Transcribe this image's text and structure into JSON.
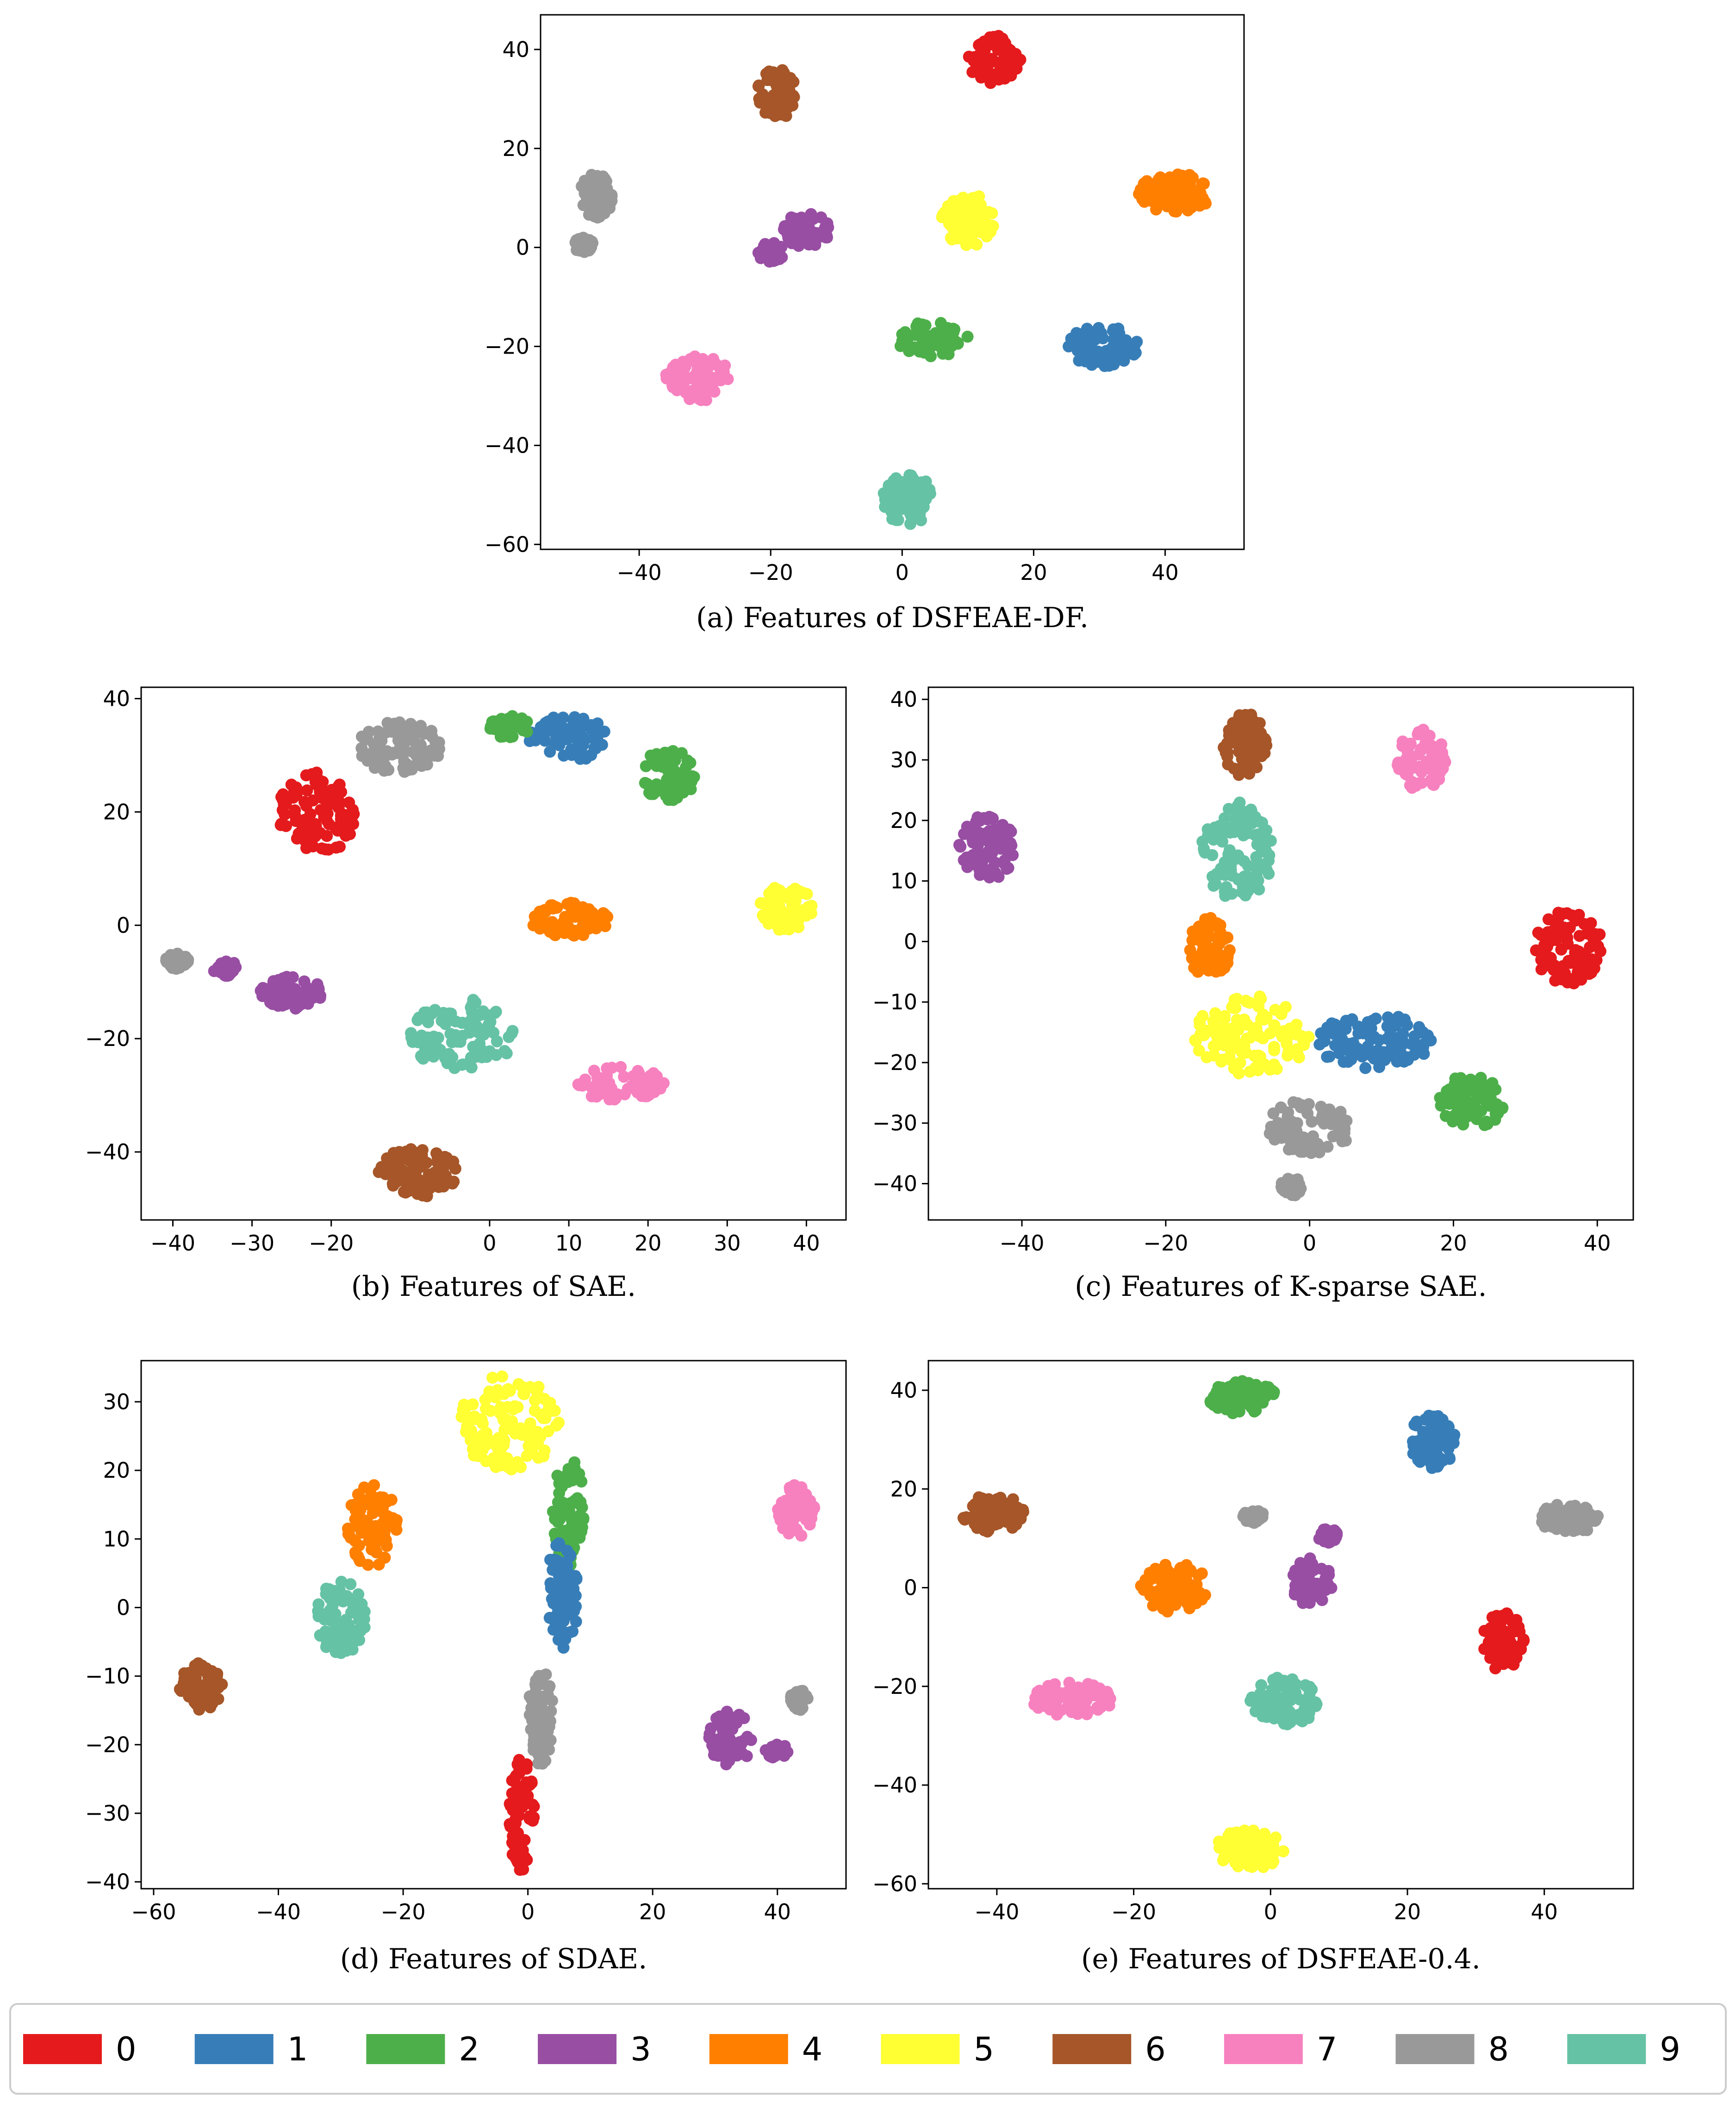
{
  "legend": {
    "entries": [
      {
        "label": "0",
        "color": "#e41a1c"
      },
      {
        "label": "1",
        "color": "#377eb8"
      },
      {
        "label": "2",
        "color": "#4daf4a"
      },
      {
        "label": "3",
        "color": "#984ea3"
      },
      {
        "label": "4",
        "color": "#ff7f00"
      },
      {
        "label": "5",
        "color": "#ffff33"
      },
      {
        "label": "6",
        "color": "#a65628"
      },
      {
        "label": "7",
        "color": "#f781bf"
      },
      {
        "label": "8",
        "color": "#999999"
      },
      {
        "label": "9",
        "color": "#66c2a5"
      }
    ],
    "placement": "bottom"
  },
  "chart_data": [
    {
      "type": "scatter",
      "caption": "(a)  Features of DSFEAE-DF.",
      "xlim": [
        -55,
        52
      ],
      "ylim": [
        -61,
        47
      ],
      "xticks": [
        -40,
        -20,
        0,
        20,
        40
      ],
      "yticks": [
        -60,
        -40,
        -20,
        0,
        20,
        40
      ],
      "grid": false,
      "clusters": [
        {
          "class": "0",
          "x": [
            10,
            18
          ],
          "y": [
            33,
            43
          ]
        },
        {
          "class": "6",
          "x": [
            -22,
            -16
          ],
          "y": [
            26,
            36
          ]
        },
        {
          "class": "8",
          "x": [
            -49,
            -44
          ],
          "y": [
            6,
            15
          ]
        },
        {
          "class": "8",
          "x": [
            -50,
            -47
          ],
          "y": [
            -1,
            2
          ]
        },
        {
          "class": "4",
          "x": [
            36,
            47
          ],
          "y": [
            7,
            15
          ]
        },
        {
          "class": "5",
          "x": [
            6,
            14
          ],
          "y": [
            0,
            11
          ]
        },
        {
          "class": "3",
          "x": [
            -18,
            -11
          ],
          "y": [
            0,
            7
          ]
        },
        {
          "class": "3",
          "x": [
            -22,
            -18
          ],
          "y": [
            -3,
            1
          ]
        },
        {
          "class": "2",
          "x": [
            -1,
            10
          ],
          "y": [
            -22,
            -15
          ]
        },
        {
          "class": "1",
          "x": [
            25,
            36
          ],
          "y": [
            -24,
            -16
          ]
        },
        {
          "class": "7",
          "x": [
            -36,
            -26
          ],
          "y": [
            -31,
            -22
          ]
        },
        {
          "class": "9",
          "x": [
            -3,
            5
          ],
          "y": [
            -56,
            -46
          ]
        }
      ]
    },
    {
      "type": "scatter",
      "caption": "(b)  Features of SAE.",
      "xlim": [
        -44,
        45
      ],
      "ylim": [
        -52,
        42
      ],
      "xticks": [
        -40,
        -30,
        -20,
        10,
        0,
        10,
        20,
        30,
        40
      ],
      "yticks": [
        -40,
        -20,
        0,
        20,
        40
      ],
      "grid": false,
      "clusters": [
        {
          "class": "8",
          "x": [
            -17,
            -6
          ],
          "y": [
            27,
            36
          ]
        },
        {
          "class": "0",
          "x": [
            -27,
            -17
          ],
          "y": [
            12,
            27
          ]
        },
        {
          "class": "1",
          "x": [
            5,
            15
          ],
          "y": [
            29,
            37
          ]
        },
        {
          "class": "2",
          "x": [
            0,
            5
          ],
          "y": [
            33,
            37
          ]
        },
        {
          "class": "2",
          "x": [
            19,
            26
          ],
          "y": [
            22,
            31
          ]
        },
        {
          "class": "5",
          "x": [
            34,
            41
          ],
          "y": [
            -1,
            7
          ]
        },
        {
          "class": "4",
          "x": [
            5,
            15
          ],
          "y": [
            -2,
            4
          ]
        },
        {
          "class": "8",
          "x": [
            -41,
            -38
          ],
          "y": [
            -8,
            -5
          ]
        },
        {
          "class": "3",
          "x": [
            -35,
            -32
          ],
          "y": [
            -9,
            -6
          ]
        },
        {
          "class": "3",
          "x": [
            -29,
            -21
          ],
          "y": [
            -15,
            -9
          ]
        },
        {
          "class": "9",
          "x": [
            -10,
            3
          ],
          "y": [
            -26,
            -13
          ]
        },
        {
          "class": "7",
          "x": [
            11,
            22
          ],
          "y": [
            -31,
            -25
          ]
        },
        {
          "class": "6",
          "x": [
            -14,
            -4
          ],
          "y": [
            -48,
            -39
          ]
        }
      ]
    },
    {
      "type": "scatter",
      "caption": "(c)  Features of K-sparse SAE.",
      "xlim": [
        -53,
        45
      ],
      "ylim": [
        -46,
        42
      ],
      "xticks": [
        -40,
        -20,
        0,
        20,
        40
      ],
      "yticks": [
        -40,
        -30,
        -20,
        -10,
        0,
        10,
        20,
        30,
        40
      ],
      "grid": false,
      "clusters": [
        {
          "class": "6",
          "x": [
            -12,
            -6
          ],
          "y": [
            27,
            38
          ]
        },
        {
          "class": "7",
          "x": [
            12,
            19
          ],
          "y": [
            25,
            35
          ]
        },
        {
          "class": "3",
          "x": [
            -49,
            -41
          ],
          "y": [
            10,
            21
          ]
        },
        {
          "class": "9",
          "x": [
            -15,
            -5
          ],
          "y": [
            7,
            23
          ]
        },
        {
          "class": "4",
          "x": [
            -17,
            -11
          ],
          "y": [
            -6,
            4
          ]
        },
        {
          "class": "5",
          "x": [
            -16,
            0
          ],
          "y": [
            -22,
            -9
          ]
        },
        {
          "class": "1",
          "x": [
            1,
            17
          ],
          "y": [
            -21,
            -12
          ]
        },
        {
          "class": "0",
          "x": [
            31,
            41
          ],
          "y": [
            -7,
            5
          ]
        },
        {
          "class": "2",
          "x": [
            18,
            27
          ],
          "y": [
            -31,
            -22
          ]
        },
        {
          "class": "8",
          "x": [
            -6,
            6
          ],
          "y": [
            -35,
            -26
          ]
        },
        {
          "class": "8",
          "x": [
            -4,
            -1
          ],
          "y": [
            -42,
            -39
          ]
        }
      ]
    },
    {
      "type": "scatter",
      "caption": "(d)  Features of SDAE.",
      "xlim": [
        -62,
        51
      ],
      "ylim": [
        -41,
        36
      ],
      "xticks": [
        -60,
        -40,
        -20,
        0,
        20,
        40
      ],
      "yticks": [
        -40,
        -30,
        -20,
        -10,
        0,
        10,
        20,
        30
      ],
      "grid": false,
      "clusters": [
        {
          "class": "5",
          "x": [
            -11,
            5
          ],
          "y": [
            20,
            34
          ]
        },
        {
          "class": "2",
          "x": [
            4,
            9
          ],
          "y": [
            6,
            22
          ]
        },
        {
          "class": "1",
          "x": [
            3,
            8
          ],
          "y": [
            -7,
            10
          ]
        },
        {
          "class": "4",
          "x": [
            -29,
            -21
          ],
          "y": [
            6,
            18
          ]
        },
        {
          "class": "9",
          "x": [
            -34,
            -26
          ],
          "y": [
            -7,
            4
          ]
        },
        {
          "class": "7",
          "x": [
            40,
            46
          ],
          "y": [
            10,
            18
          ]
        },
        {
          "class": "6",
          "x": [
            -56,
            -49
          ],
          "y": [
            -15,
            -8
          ]
        },
        {
          "class": "8",
          "x": [
            0,
            4
          ],
          "y": [
            -23,
            -9
          ]
        },
        {
          "class": "0",
          "x": [
            -3,
            1
          ],
          "y": [
            -39,
            -22
          ]
        },
        {
          "class": "3",
          "x": [
            29,
            36
          ],
          "y": [
            -23,
            -15
          ]
        },
        {
          "class": "3",
          "x": [
            38,
            42
          ],
          "y": [
            -22,
            -20
          ]
        },
        {
          "class": "8",
          "x": [
            42,
            45
          ],
          "y": [
            -15,
            -12
          ]
        }
      ]
    },
    {
      "type": "scatter",
      "caption": "(e)  Features of DSFEAE-0.4.",
      "xlim": [
        -50,
        53
      ],
      "ylim": [
        -61,
        46
      ],
      "xticks": [
        -40,
        -20,
        0,
        20,
        40
      ],
      "yticks": [
        -60,
        -40,
        -20,
        0,
        20,
        40
      ],
      "grid": false,
      "clusters": [
        {
          "class": "2",
          "x": [
            -9,
            1
          ],
          "y": [
            35,
            42
          ]
        },
        {
          "class": "1",
          "x": [
            20,
            27
          ],
          "y": [
            24,
            35
          ]
        },
        {
          "class": "6",
          "x": [
            -45,
            -36
          ],
          "y": [
            11,
            19
          ]
        },
        {
          "class": "8",
          "x": [
            39,
            48
          ],
          "y": [
            11,
            17
          ]
        },
        {
          "class": "8",
          "x": [
            -4,
            -1
          ],
          "y": [
            13,
            16
          ]
        },
        {
          "class": "3",
          "x": [
            7,
            10
          ],
          "y": [
            9,
            12
          ]
        },
        {
          "class": "3",
          "x": [
            3,
            9
          ],
          "y": [
            -4,
            6
          ]
        },
        {
          "class": "4",
          "x": [
            -19,
            -9
          ],
          "y": [
            -5,
            5
          ]
        },
        {
          "class": "0",
          "x": [
            31,
            37
          ],
          "y": [
            -17,
            -5
          ]
        },
        {
          "class": "7",
          "x": [
            -35,
            -23
          ],
          "y": [
            -26,
            -19
          ]
        },
        {
          "class": "9",
          "x": [
            -3,
            7
          ],
          "y": [
            -28,
            -18
          ]
        },
        {
          "class": "5",
          "x": [
            -8,
            2
          ],
          "y": [
            -57,
            -49
          ]
        }
      ]
    }
  ]
}
